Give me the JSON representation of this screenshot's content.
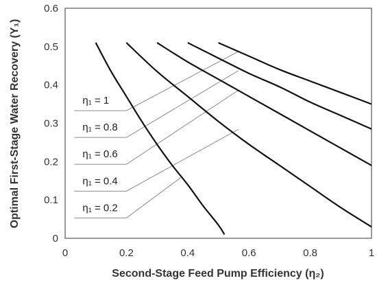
{
  "chart_data": {
    "type": "line",
    "xlabel": "Second-Stage Feed Pump Efficiency (η₂)",
    "ylabel": "Optimal First-Stage Water Recovery (Y₁)",
    "xlim": [
      0,
      1
    ],
    "ylim": [
      0,
      0.6
    ],
    "x_ticks": [
      "0",
      "0.2",
      "0.4",
      "0.6",
      "0.8",
      "1"
    ],
    "y_ticks": [
      "0",
      "0.1",
      "0.2",
      "0.3",
      "0.4",
      "0.5",
      "0.6"
    ],
    "x_tick_values": [
      0,
      0.2,
      0.4,
      0.6,
      0.8,
      1
    ],
    "y_tick_values": [
      0,
      0.1,
      0.2,
      0.3,
      0.4,
      0.5,
      0.6
    ],
    "grid": false,
    "legend": "none",
    "series": [
      {
        "name": "η₁ = 0.2",
        "x": [
          0.1,
          0.15,
          0.2,
          0.25,
          0.3,
          0.35,
          0.4,
          0.45,
          0.5,
          0.52
        ],
        "y": [
          0.51,
          0.435,
          0.37,
          0.305,
          0.245,
          0.19,
          0.14,
          0.085,
          0.035,
          0.01
        ]
      },
      {
        "name": "η₁ = 0.4",
        "x": [
          0.2,
          0.3,
          0.4,
          0.5,
          0.6,
          0.7,
          0.8,
          0.9,
          1.0
        ],
        "y": [
          0.51,
          0.435,
          0.37,
          0.305,
          0.245,
          0.19,
          0.135,
          0.08,
          0.03
        ]
      },
      {
        "name": "η₁ = 0.6",
        "x": [
          0.3,
          0.4,
          0.5,
          0.6,
          0.7,
          0.8,
          0.9,
          1.0
        ],
        "y": [
          0.51,
          0.46,
          0.415,
          0.37,
          0.325,
          0.28,
          0.235,
          0.19
        ]
      },
      {
        "name": "η₁ = 0.8",
        "x": [
          0.4,
          0.5,
          0.6,
          0.7,
          0.8,
          0.9,
          1.0
        ],
        "y": [
          0.51,
          0.47,
          0.43,
          0.395,
          0.355,
          0.32,
          0.285
        ]
      },
      {
        "name": "η₁ = 1",
        "x": [
          0.5,
          0.6,
          0.7,
          0.8,
          0.9,
          1.0
        ],
        "y": [
          0.51,
          0.475,
          0.44,
          0.41,
          0.38,
          0.35
        ]
      }
    ],
    "annotations": [
      {
        "label": "η₁ = 1",
        "series": "η₁ = 1",
        "text_x": 0.03,
        "text_y": 0.36,
        "line_y": 0.333,
        "ref_x": 0.2,
        "target_x": 0.565,
        "target_y": 0.487
      },
      {
        "label": "η₁ = 0.8",
        "series": "η₁ = 0.8",
        "text_x": 0.03,
        "text_y": 0.29,
        "line_y": 0.263,
        "ref_x": 0.2,
        "target_x": 0.565,
        "target_y": 0.437
      },
      {
        "label": "η₁ = 0.6",
        "series": "η₁ = 0.6",
        "text_x": 0.03,
        "text_y": 0.22,
        "line_y": 0.193,
        "ref_x": 0.2,
        "target_x": 0.565,
        "target_y": 0.386
      },
      {
        "label": "η₁ = 0.4",
        "series": "η₁ = 0.4",
        "text_x": 0.03,
        "text_y": 0.15,
        "line_y": 0.123,
        "ref_x": 0.2,
        "target_x": 0.565,
        "target_y": 0.284
      },
      {
        "label": "η₁ = 0.2",
        "series": "η₁ = 0.2",
        "text_x": 0.03,
        "text_y": 0.08,
        "line_y": 0.053,
        "ref_x": 0.2,
        "target_x": 0.38,
        "target_y": 0.16
      }
    ],
    "colors": {
      "curve": "#111111",
      "leader": "#8a8a8a",
      "axis": "#333333"
    }
  }
}
